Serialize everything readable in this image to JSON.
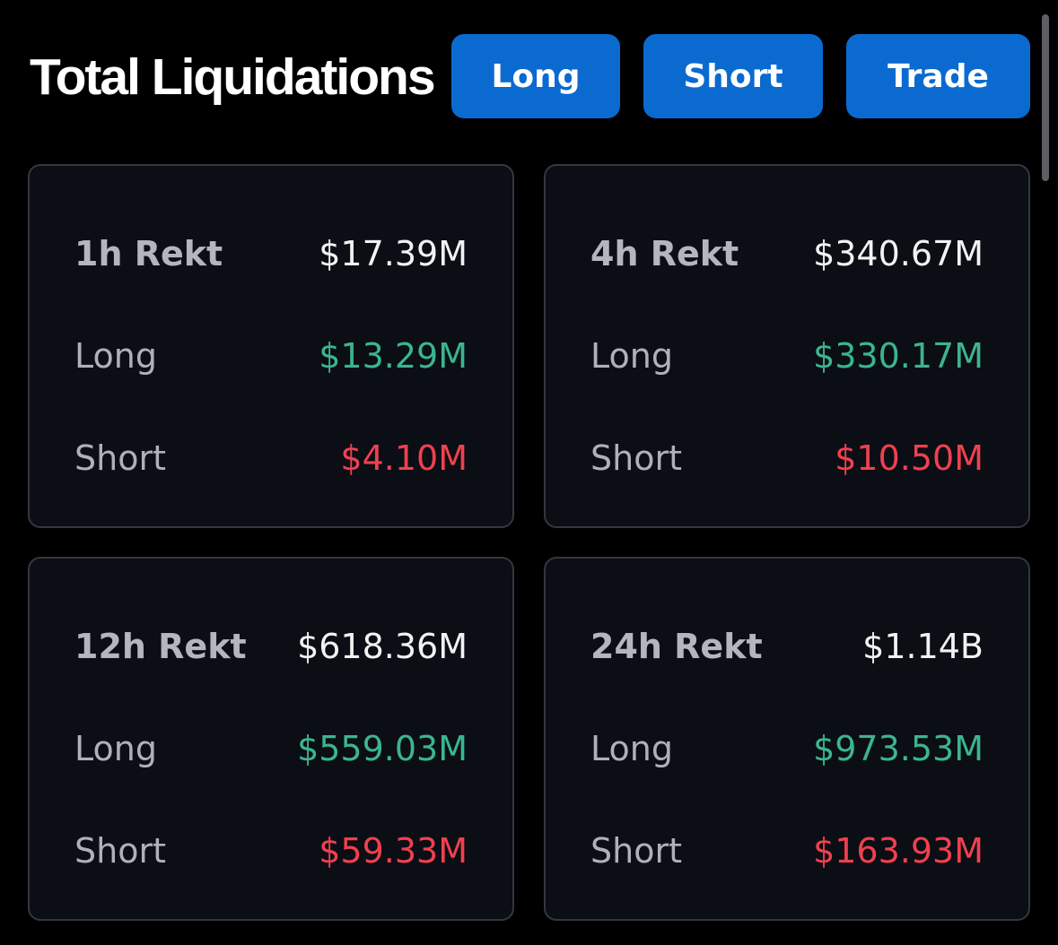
{
  "header": {
    "title": "Total Liquidations",
    "buttons": {
      "long": "Long",
      "short": "Short",
      "trade": "Trade"
    }
  },
  "colors": {
    "accent": "#0b6ad0",
    "long": "#3bb58e",
    "short": "#f0404f",
    "card_bg": "#0b0e14",
    "card_border": "#33373f"
  },
  "cards": [
    {
      "period_label": "1h Rekt",
      "total": "$17.39M",
      "long_label": "Long",
      "long_value": "$13.29M",
      "short_label": "Short",
      "short_value": "$4.10M"
    },
    {
      "period_label": "4h Rekt",
      "total": "$340.67M",
      "long_label": "Long",
      "long_value": "$330.17M",
      "short_label": "Short",
      "short_value": "$10.50M"
    },
    {
      "period_label": "12h Rekt",
      "total": "$618.36M",
      "long_label": "Long",
      "long_value": "$559.03M",
      "short_label": "Short",
      "short_value": "$59.33M"
    },
    {
      "period_label": "24h Rekt",
      "total": "$1.14B",
      "long_label": "Long",
      "long_value": "$973.53M",
      "short_label": "Short",
      "short_value": "$163.93M"
    }
  ]
}
